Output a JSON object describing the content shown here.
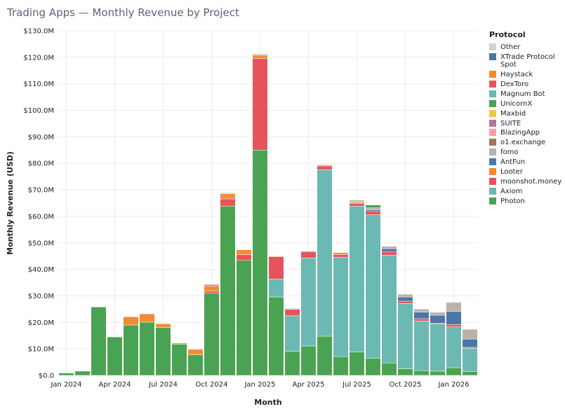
{
  "title": "Trading Apps — Monthly Revenue by Project",
  "chart_data": {
    "type": "bar",
    "stacked": true,
    "xlabel": "Month",
    "ylabel": "Monthly Revenue (USD)",
    "ylim": [
      0,
      130
    ],
    "y_unit": "M USD",
    "yticks": [
      "$0.0",
      "$10.0M",
      "$20.0M",
      "$30.0M",
      "$40.0M",
      "$50.0M",
      "$60.0M",
      "$70.0M",
      "$80.0M",
      "$90.0M",
      "$100.0M",
      "$110.0M",
      "$120.0M",
      "$130.0M"
    ],
    "xticks": [
      {
        "index": 0,
        "label": "Jan 2024"
      },
      {
        "index": 3,
        "label": "Apr 2024"
      },
      {
        "index": 6,
        "label": "Jul 2024"
      },
      {
        "index": 9,
        "label": "Oct 2024"
      },
      {
        "index": 12,
        "label": "Jan 2025"
      },
      {
        "index": 15,
        "label": "Apr 2025"
      },
      {
        "index": 18,
        "label": "Jul 2025"
      },
      {
        "index": 21,
        "label": "Oct 2025"
      },
      {
        "index": 24,
        "label": "Jan 2026"
      }
    ],
    "grid": true,
    "legend_title": "Protocol",
    "legend_position": "right",
    "categories": [
      "Jan 2024",
      "Feb 2024",
      "Mar 2024",
      "Apr 2024",
      "May 2024",
      "Jun 2024",
      "Jul 2024",
      "Aug 2024",
      "Sep 2024",
      "Oct 2024",
      "Nov 2024",
      "Dec 2024",
      "Jan 2025",
      "Feb 2025",
      "Mar 2025",
      "Apr 2025",
      "May 2025",
      "Jun 2025",
      "Jul 2025",
      "Aug 2025",
      "Sep 2025",
      "Oct 2025",
      "Nov 2025",
      "Dec 2025",
      "Jan 2026",
      "Feb 2026"
    ],
    "series": [
      {
        "name": "Photon",
        "color": "#4aa352",
        "values": [
          0.9,
          1.6,
          25.8,
          14.5,
          19.0,
          20.1,
          18.1,
          11.8,
          7.8,
          31.0,
          63.9,
          43.4,
          85.0,
          29.6,
          9.1,
          11.1,
          14.8,
          7.1,
          8.8,
          6.4,
          4.7,
          2.5,
          1.8,
          1.6,
          2.9,
          1.4
        ]
      },
      {
        "name": "Axiom",
        "color": "#6bb9b2",
        "values": [
          0,
          0,
          0,
          0,
          0,
          0,
          0,
          0,
          0,
          0,
          0,
          0,
          0,
          6.8,
          13.4,
          33.2,
          62.8,
          37.5,
          55.1,
          54.2,
          40.7,
          24.6,
          18.7,
          17.8,
          15.4,
          8.8
        ]
      },
      {
        "name": "moonshot.money",
        "color": "#e5545b",
        "values": [
          0,
          0,
          0,
          0,
          0,
          0,
          0,
          0,
          0,
          0.8,
          2.7,
          2.2,
          34.6,
          8.4,
          2.4,
          2.4,
          1.4,
          1.0,
          0.9,
          1.3,
          1.3,
          0.9,
          0.9,
          0.2,
          0.9,
          0.4
        ]
      },
      {
        "name": "Looter",
        "color": "#f58a35",
        "values": [
          0,
          0,
          0,
          0,
          3.1,
          3.1,
          1.4,
          0.4,
          2.0,
          2.0,
          1.9,
          1.8,
          1.3,
          0.2,
          0,
          0,
          0.4,
          0.7,
          0.5,
          0,
          0,
          0,
          0,
          0,
          0,
          0
        ]
      },
      {
        "name": "AntFun",
        "color": "#4a77a8",
        "values": [
          0,
          0,
          0,
          0,
          0,
          0,
          0,
          0,
          0,
          0,
          0,
          0,
          0,
          0,
          0,
          0,
          0,
          0,
          0,
          0.6,
          1.1,
          1.6,
          2.5,
          3.1,
          4.9,
          3.1
        ]
      },
      {
        "name": "fomo",
        "color": "#bab0ac",
        "values": [
          0,
          0,
          0,
          0,
          0,
          0,
          0,
          0,
          0,
          0,
          0,
          0,
          0,
          0,
          0,
          0,
          0,
          0,
          0.5,
          0.7,
          0.9,
          1.0,
          1.1,
          1.1,
          3.4,
          3.6
        ]
      },
      {
        "name": "o1.exchange",
        "color": "#9d7660",
        "values": [
          0,
          0,
          0,
          0,
          0,
          0,
          0,
          0,
          0,
          0,
          0,
          0,
          0,
          0,
          0,
          0,
          0,
          0,
          0,
          0,
          0,
          0,
          0,
          0,
          0.2,
          0.2
        ]
      },
      {
        "name": "BlazingApp",
        "color": "#ff9da7",
        "values": [
          0,
          0,
          0,
          0,
          0,
          0,
          0,
          0,
          0,
          0,
          0,
          0,
          0,
          0,
          0,
          0,
          0,
          0,
          0,
          0,
          0,
          0,
          0,
          0,
          0,
          0
        ]
      },
      {
        "name": "SUITE",
        "color": "#b07aa1",
        "values": [
          0,
          0,
          0,
          0,
          0,
          0,
          0,
          0,
          0,
          0.5,
          0,
          0,
          0,
          0,
          0,
          0,
          0,
          0,
          0,
          0,
          0,
          0,
          0,
          0,
          0,
          0
        ]
      },
      {
        "name": "Maxbid",
        "color": "#edc948",
        "values": [
          0,
          0,
          0,
          0,
          0,
          0,
          0,
          0,
          0,
          0,
          0,
          0,
          0,
          0,
          0,
          0,
          0,
          0,
          0,
          0,
          0,
          0,
          0,
          0,
          0,
          0
        ]
      },
      {
        "name": "UnicornX",
        "color": "#4aa352",
        "values": [
          0,
          0,
          0,
          0,
          0,
          0,
          0,
          0,
          0,
          0,
          0,
          0,
          0,
          0,
          0,
          0,
          0,
          0,
          0.3,
          1.1,
          0,
          0,
          0,
          0,
          0,
          0
        ]
      },
      {
        "name": "Magnum Bot",
        "color": "#6bb9b2",
        "values": [
          0,
          0,
          0,
          0,
          0,
          0,
          0,
          0,
          0,
          0,
          0,
          0,
          0,
          0,
          0,
          0,
          0,
          0,
          0,
          0,
          0,
          0,
          0,
          0,
          0,
          0
        ]
      },
      {
        "name": "DexToro",
        "color": "#e5545b",
        "values": [
          0,
          0,
          0,
          0,
          0,
          0,
          0,
          0,
          0,
          0,
          0,
          0,
          0,
          0,
          0,
          0,
          0,
          0,
          0,
          0,
          0,
          0,
          0,
          0,
          0,
          0
        ]
      },
      {
        "name": "Haystack",
        "color": "#f58a35",
        "values": [
          0,
          0,
          0,
          0,
          0,
          0,
          0,
          0,
          0,
          0,
          0,
          0,
          0,
          0,
          0,
          0,
          0,
          0,
          0,
          0,
          0,
          0,
          0,
          0,
          0,
          0
        ]
      },
      {
        "name": "XTrade Protocol Spot",
        "color": "#4a77a8",
        "values": [
          0,
          0,
          0,
          0,
          0,
          0,
          0,
          0,
          0,
          0,
          0,
          0,
          0,
          0,
          0,
          0,
          0,
          0,
          0,
          0,
          0,
          0,
          0,
          0,
          0,
          0
        ]
      },
      {
        "name": "Other",
        "color": "#d0d4da",
        "values": [
          0,
          0,
          0,
          0,
          0,
          0,
          0,
          0,
          0,
          0,
          0.5,
          0,
          0.5,
          0.2,
          0.5,
          0.3,
          0,
          0,
          0,
          0,
          0,
          0,
          0,
          0,
          0,
          0
        ]
      }
    ]
  }
}
